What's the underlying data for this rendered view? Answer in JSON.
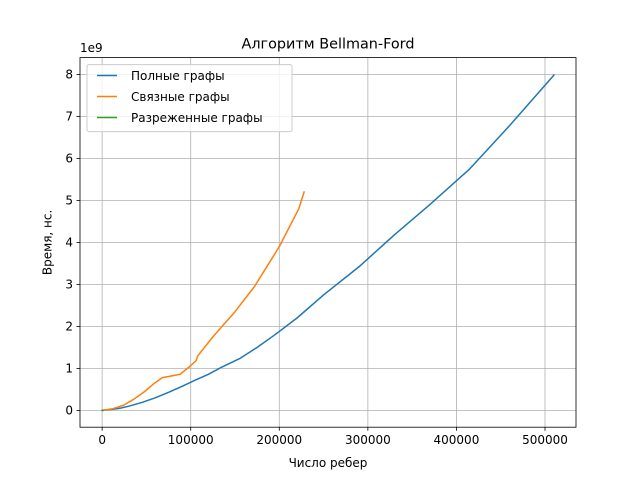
{
  "chart_data": {
    "type": "line",
    "title": "Алгоритм Bellman-Ford",
    "xlabel": "Число ребер",
    "ylabel": "Время, нс.",
    "y_offset_label": "1e9",
    "xlim": [
      -25000,
      535000
    ],
    "ylim": [
      -0.4,
      8.4
    ],
    "x_ticks": [
      0,
      100000,
      200000,
      300000,
      400000,
      500000
    ],
    "x_tick_labels": [
      "0",
      "100000",
      "200000",
      "300000",
      "400000",
      "500000"
    ],
    "y_ticks": [
      0,
      1,
      2,
      3,
      4,
      5,
      6,
      7,
      8
    ],
    "y_tick_labels": [
      "0",
      "1",
      "2",
      "3",
      "4",
      "5",
      "6",
      "7",
      "8"
    ],
    "grid": true,
    "legend_position": "top-left",
    "series": [
      {
        "name": "Полные графы",
        "color": "#1f77b4",
        "x": [
          0,
          10000,
          20000,
          30000,
          45000,
          60000,
          75000,
          90000,
          105000,
          120000,
          135000,
          155000,
          175000,
          195000,
          220000,
          250000,
          290000,
          330000,
          370000,
          415000,
          460000,
          510000
        ],
        "y": [
          0,
          0.02,
          0.05,
          0.1,
          0.19,
          0.3,
          0.43,
          0.57,
          0.72,
          0.86,
          1.03,
          1.23,
          1.5,
          1.8,
          2.2,
          2.75,
          3.42,
          4.18,
          4.9,
          5.75,
          6.78,
          7.98
        ]
      },
      {
        "name": "Связные графы",
        "color": "#ff7f0e",
        "x": [
          0,
          12000,
          24000,
          36000,
          48000,
          58000,
          68000,
          78000,
          88000,
          98000,
          106000,
          108000,
          125000,
          150000,
          172000,
          200000,
          222000,
          228000
        ],
        "y": [
          0,
          0.04,
          0.12,
          0.27,
          0.45,
          0.63,
          0.78,
          0.82,
          0.86,
          1.03,
          1.18,
          1.3,
          1.75,
          2.35,
          2.95,
          3.9,
          4.8,
          5.2
        ]
      },
      {
        "name": "Разреженные графы",
        "color": "#2ca02c",
        "x": [
          0,
          500,
          1000
        ],
        "y": [
          0,
          0.0005,
          0.001
        ]
      }
    ]
  }
}
